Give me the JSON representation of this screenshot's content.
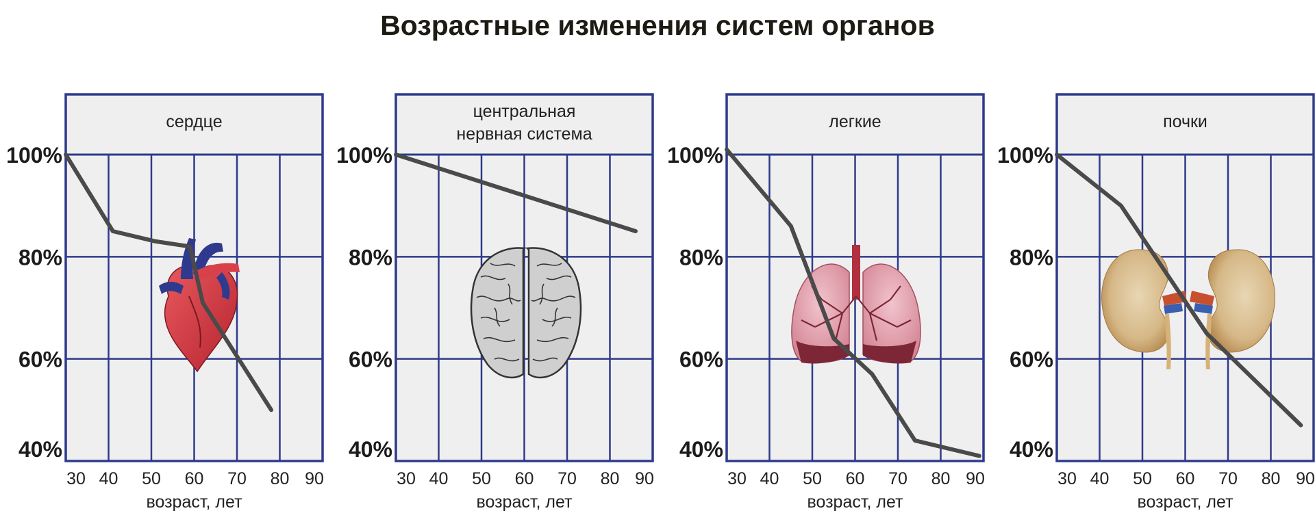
{
  "title": "Возрастные изменения систем органов",
  "colors": {
    "frame": "#2e3a8c",
    "plot_bg": "#efefef",
    "line": "#4a4a4a"
  },
  "chart_data": [
    {
      "type": "line",
      "title": "сердце",
      "organ_icon": "heart-icon",
      "xlabel": "возраст, лет",
      "ylabel": "",
      "x_ticks": [
        "30",
        "40",
        "50",
        "60",
        "70",
        "80",
        "90"
      ],
      "y_ticks": [
        "100%",
        "80%",
        "60%",
        "40%"
      ],
      "xlim": [
        30,
        90
      ],
      "ylim": [
        40,
        100
      ],
      "grid": true,
      "x": [
        30,
        41,
        51,
        59,
        62,
        78
      ],
      "y": [
        100,
        85,
        83,
        82,
        71,
        50
      ]
    },
    {
      "type": "line",
      "title": [
        "центральная",
        "нервная система"
      ],
      "organ_icon": "brain-icon",
      "xlabel": "возраст, лет",
      "ylabel": "",
      "x_ticks": [
        "30",
        "40",
        "50",
        "60",
        "70",
        "80",
        "90"
      ],
      "y_ticks": [
        "100%",
        "80%",
        "60%",
        "40%"
      ],
      "xlim": [
        30,
        90
      ],
      "ylim": [
        40,
        100
      ],
      "grid": true,
      "x": [
        30,
        86
      ],
      "y": [
        100,
        85
      ]
    },
    {
      "type": "line",
      "title": "легкие",
      "organ_icon": "lungs-icon",
      "xlabel": "возраст, лет",
      "ylabel": "",
      "x_ticks": [
        "30",
        "40",
        "50",
        "60",
        "70",
        "80",
        "90"
      ],
      "y_ticks": [
        "100%",
        "80%",
        "60%",
        "40%"
      ],
      "xlim": [
        30,
        90
      ],
      "ylim": [
        40,
        100
      ],
      "grid": true,
      "x": [
        30,
        45,
        55,
        64,
        74,
        89
      ],
      "y": [
        101,
        86,
        64,
        57,
        44,
        41
      ]
    },
    {
      "type": "line",
      "title": "почки",
      "organ_icon": "kidneys-icon",
      "xlabel": "возраст, лет",
      "ylabel": "",
      "x_ticks": [
        "30",
        "40",
        "50",
        "60",
        "70",
        "80",
        "90"
      ],
      "y_ticks": [
        "100%",
        "80%",
        "60%",
        "40%"
      ],
      "xlim": [
        30,
        90
      ],
      "ylim": [
        40,
        100
      ],
      "grid": true,
      "x": [
        30,
        45,
        65,
        87
      ],
      "y": [
        100,
        90,
        65,
        47
      ]
    }
  ]
}
